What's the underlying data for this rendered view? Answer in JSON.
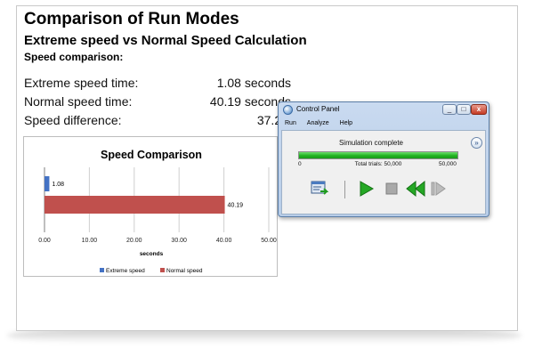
{
  "header": {
    "title": "Comparison of Run Modes",
    "subtitle": "Extreme speed vs Normal Speed Calculation",
    "section_label": "Speed comparison:"
  },
  "stats": [
    {
      "label": "Extreme speed time:",
      "value": "1.08 seconds"
    },
    {
      "label": "Normal speed time:",
      "value": "40.19 seconds"
    },
    {
      "label": "Speed difference:",
      "value": "37.2 x"
    }
  ],
  "chart_data": {
    "type": "bar",
    "orientation": "horizontal",
    "title": "Speed Comparison",
    "xlabel": "seconds",
    "ylabel": "",
    "xlim": [
      0,
      50
    ],
    "xticks": [
      "0.00",
      "10.00",
      "20.00",
      "30.00",
      "40.00",
      "50.00"
    ],
    "grid": true,
    "legend_position": "bottom",
    "series": [
      {
        "name": "Extreme speed",
        "values": [
          1.08
        ],
        "color": "#4472c4",
        "label": "1.08"
      },
      {
        "name": "Normal speed",
        "values": [
          40.19
        ],
        "color": "#c0504d",
        "label": "40.19"
      }
    ]
  },
  "control_panel": {
    "title": "Control Panel",
    "menu": [
      "Run",
      "Analyze",
      "Help"
    ],
    "status": "Simulation complete",
    "progress_fraction": 1.0,
    "progress_min": "0",
    "progress_max": "50,000",
    "total_trials": "Total trials: 50,000",
    "window_buttons": {
      "minimize": "_",
      "maximize": "□",
      "close": "x"
    },
    "toolbar_icons": [
      "edit-definitions-icon",
      "run-icon",
      "stop-icon",
      "reset-icon",
      "step-icon"
    ],
    "accent_green": "#21b321"
  }
}
